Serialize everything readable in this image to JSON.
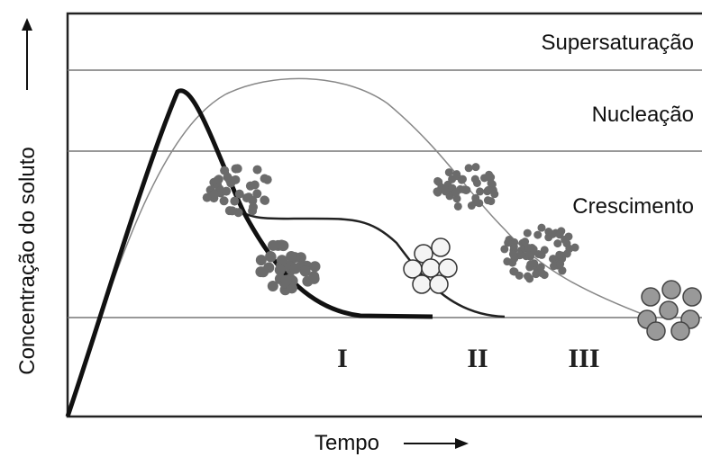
{
  "regions": [
    "Supersaturação",
    "Nucleação",
    "Crescimento"
  ],
  "curve_labels": [
    "I",
    "II",
    "III"
  ],
  "axes": {
    "y_label": "Concentração do soluto",
    "x_label": "Tempo"
  }
}
